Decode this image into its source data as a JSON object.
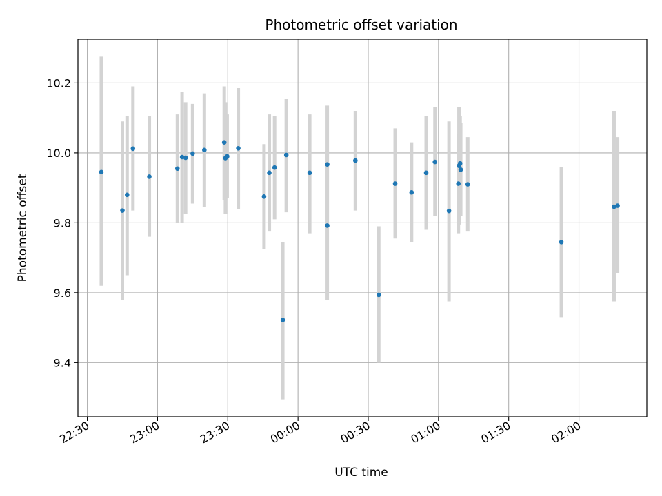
{
  "chart_data": {
    "type": "scatter",
    "title": "Photometric offset variation",
    "xlabel": "UTC time",
    "ylabel": "Photometric offset",
    "x_unit": "UTC time (hh:mm)",
    "xlim": [
      "22:26",
      "02:29"
    ],
    "ylim": [
      9.245,
      10.325
    ],
    "grid": true,
    "x_ticks": [
      {
        "t": "22:30",
        "label": "22:30"
      },
      {
        "t": "23:00",
        "label": "23:00"
      },
      {
        "t": "23:30",
        "label": "23:30"
      },
      {
        "t": "00:00",
        "label": "00:00"
      },
      {
        "t": "00:30",
        "label": "00:30"
      },
      {
        "t": "01:00",
        "label": "01:00"
      },
      {
        "t": "01:30",
        "label": "01:30"
      },
      {
        "t": "02:00",
        "label": "02:00"
      }
    ],
    "y_ticks": [
      {
        "v": 9.4,
        "label": "9.4"
      },
      {
        "v": 9.6,
        "label": "9.6"
      },
      {
        "v": 9.8,
        "label": "9.8"
      },
      {
        "v": 10.0,
        "label": "10.0"
      },
      {
        "v": 10.2,
        "label": "10.2"
      }
    ],
    "colors": {
      "point": "#1f77b4",
      "errorbar": "#d3d3d3",
      "grid": "#b0b0b0"
    },
    "points": [
      {
        "t": "22:36:00",
        "y": 9.945,
        "lo": 9.62,
        "hi": 10.275
      },
      {
        "t": "22:45:00",
        "y": 9.835,
        "lo": 9.58,
        "hi": 10.09
      },
      {
        "t": "22:47:00",
        "y": 9.88,
        "lo": 9.65,
        "hi": 10.105
      },
      {
        "t": "22:49:30",
        "y": 10.012,
        "lo": 9.835,
        "hi": 10.19
      },
      {
        "t": "22:56:30",
        "y": 9.932,
        "lo": 9.76,
        "hi": 10.105
      },
      {
        "t": "23:08:30",
        "y": 9.955,
        "lo": 9.8,
        "hi": 10.11
      },
      {
        "t": "23:10:30",
        "y": 9.988,
        "lo": 9.8,
        "hi": 10.175
      },
      {
        "t": "23:12:00",
        "y": 9.986,
        "lo": 9.825,
        "hi": 10.145
      },
      {
        "t": "23:15:00",
        "y": 9.998,
        "lo": 9.855,
        "hi": 10.14
      },
      {
        "t": "23:20:00",
        "y": 10.008,
        "lo": 9.845,
        "hi": 10.17
      },
      {
        "t": "23:28:30",
        "y": 10.03,
        "lo": 9.865,
        "hi": 10.19
      },
      {
        "t": "23:29:00",
        "y": 9.985,
        "lo": 9.825,
        "hi": 10.145
      },
      {
        "t": "23:29:45",
        "y": 9.99,
        "lo": 9.87,
        "hi": 10.11
      },
      {
        "t": "23:34:30",
        "y": 10.013,
        "lo": 9.84,
        "hi": 10.185
      },
      {
        "t": "23:45:30",
        "y": 9.875,
        "lo": 9.725,
        "hi": 10.025
      },
      {
        "t": "23:47:45",
        "y": 9.943,
        "lo": 9.775,
        "hi": 10.11
      },
      {
        "t": "23:50:00",
        "y": 9.958,
        "lo": 9.81,
        "hi": 10.105
      },
      {
        "t": "23:53:30",
        "y": 9.522,
        "lo": 9.295,
        "hi": 9.745
      },
      {
        "t": "23:55:00",
        "y": 9.994,
        "lo": 9.83,
        "hi": 10.155
      },
      {
        "t": "00:05:00",
        "y": 9.943,
        "lo": 9.77,
        "hi": 10.11
      },
      {
        "t": "00:12:30",
        "y": 9.792,
        "lo": 9.58,
        "hi": 10.005
      },
      {
        "t": "00:12:30",
        "y": 9.967,
        "lo": 9.795,
        "hi": 10.135
      },
      {
        "t": "00:24:30",
        "y": 9.978,
        "lo": 9.835,
        "hi": 10.12
      },
      {
        "t": "00:34:30",
        "y": 9.594,
        "lo": 9.4,
        "hi": 9.79
      },
      {
        "t": "00:41:30",
        "y": 9.912,
        "lo": 9.755,
        "hi": 10.07
      },
      {
        "t": "00:48:30",
        "y": 9.887,
        "lo": 9.745,
        "hi": 10.03
      },
      {
        "t": "00:54:45",
        "y": 9.943,
        "lo": 9.78,
        "hi": 10.105
      },
      {
        "t": "00:58:30",
        "y": 9.974,
        "lo": 9.82,
        "hi": 10.13
      },
      {
        "t": "01:04:30",
        "y": 9.834,
        "lo": 9.575,
        "hi": 10.09
      },
      {
        "t": "01:08:30",
        "y": 9.912,
        "lo": 9.77,
        "hi": 10.055
      },
      {
        "t": "01:08:45",
        "y": 9.963,
        "lo": 9.795,
        "hi": 10.13
      },
      {
        "t": "01:09:15",
        "y": 9.97,
        "lo": 9.835,
        "hi": 10.105
      },
      {
        "t": "01:09:30",
        "y": 9.952,
        "lo": 9.82,
        "hi": 10.085
      },
      {
        "t": "01:12:30",
        "y": 9.91,
        "lo": 9.775,
        "hi": 10.045
      },
      {
        "t": "01:52:30",
        "y": 9.745,
        "lo": 9.53,
        "hi": 9.96
      },
      {
        "t": "02:15:00",
        "y": 9.846,
        "lo": 9.575,
        "hi": 10.12
      },
      {
        "t": "02:16:30",
        "y": 9.849,
        "lo": 9.655,
        "hi": 10.045
      }
    ]
  }
}
